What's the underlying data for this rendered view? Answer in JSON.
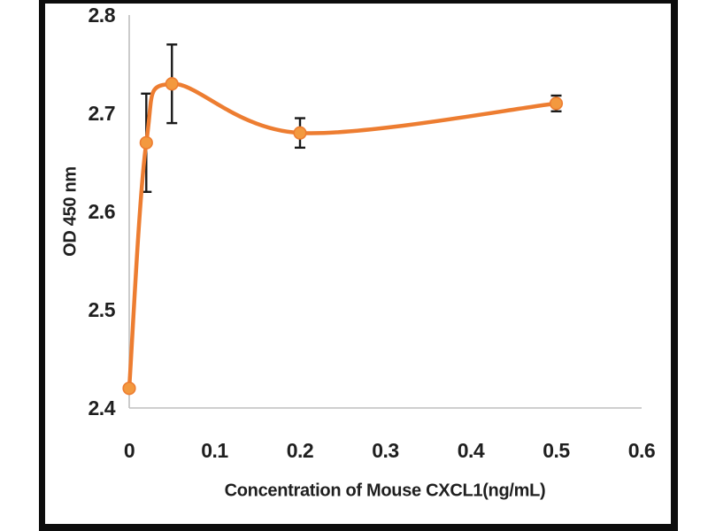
{
  "figure": {
    "background": "#ffffff",
    "frame_color": "#0d0d0d",
    "axis_line_color": "#bfbfbf",
    "text_color": "#1f1f1f"
  },
  "chart_data": {
    "type": "line",
    "title": "",
    "xlabel": "Concentration of Mouse CXCL1(ng/mL)",
    "ylabel": "OD 450 nm",
    "x": [
      0,
      0.02,
      0.05,
      0.2,
      0.5
    ],
    "y": [
      2.42,
      2.67,
      2.73,
      2.68,
      2.71
    ],
    "y_error": [
      0,
      0.05,
      0.04,
      0.015,
      0.008
    ],
    "xlim": [
      0,
      0.6
    ],
    "ylim": [
      2.4,
      2.8
    ],
    "x_ticks": [
      0,
      0.1,
      0.2,
      0.3,
      0.4,
      0.5,
      0.6
    ],
    "x_tick_labels": [
      "0",
      "0.1",
      "0.2",
      "0.3",
      "0.4",
      "0.5",
      "0.6"
    ],
    "y_ticks": [
      2.4,
      2.5,
      2.6,
      2.7,
      2.8
    ],
    "y_tick_labels": [
      "2.4",
      "2.5",
      "2.6",
      "2.7",
      "2.8"
    ],
    "grid": false,
    "legend": false,
    "smooth": true,
    "line_color": "#ed7d31",
    "marker_color": "#f3993f",
    "error_bar_color": "#1a1a1a"
  }
}
